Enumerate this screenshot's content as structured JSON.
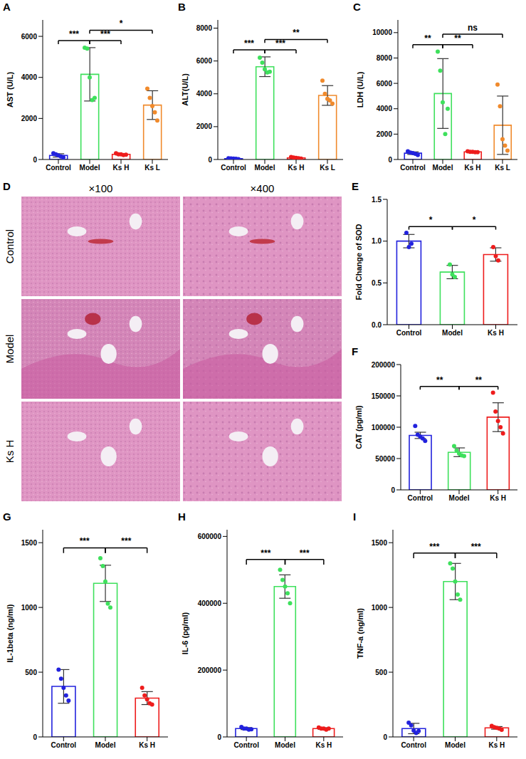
{
  "chart_data": [
    {
      "panel": "A",
      "type": "bar",
      "categories": [
        "Control",
        "Model",
        "Ks H",
        "Ks L"
      ],
      "colors": [
        "#2222dd",
        "#3ee05c",
        "#ee1c1c",
        "#f08a2c"
      ],
      "values": [
        200,
        4150,
        250,
        2650
      ],
      "error": [
        80,
        1300,
        30,
        700
      ],
      "points": [
        [
          300,
          250,
          200,
          150,
          100
        ],
        [
          5450,
          5400,
          4000,
          2900,
          3000
        ],
        [
          300,
          250,
          250,
          220,
          230
        ],
        [
          3450,
          3000,
          2600,
          2300,
          1900
        ]
      ],
      "y_label": "AST (U/L)",
      "ylim": [
        0,
        6800
      ],
      "yticks": [
        0,
        2000,
        4000,
        6000
      ],
      "comparisons": [
        {
          "groups": [
            "Control",
            "Model"
          ],
          "label": "***"
        },
        {
          "groups": [
            "Model",
            "Ks H"
          ],
          "label": "***"
        },
        {
          "groups": [
            "Model",
            "Ks L"
          ],
          "label": "*"
        }
      ]
    },
    {
      "panel": "B",
      "type": "bar",
      "categories": [
        "Control",
        "Model",
        "Ks H",
        "Ks L"
      ],
      "colors": [
        "#2222dd",
        "#3ee05c",
        "#ee1c1c",
        "#f08a2c"
      ],
      "values": [
        50,
        5650,
        100,
        3900
      ],
      "error": [
        20,
        600,
        40,
        600
      ],
      "points": [
        [
          80,
          60,
          50,
          40,
          20
        ],
        [
          6200,
          5900,
          5500,
          5300,
          5350
        ],
        [
          150,
          120,
          100,
          80,
          50
        ],
        [
          4800,
          4000,
          3700,
          3600,
          3400
        ]
      ],
      "y_label": "ALT(U/L)",
      "ylim": [
        0,
        8500
      ],
      "yticks": [
        0,
        2000,
        4000,
        6000,
        8000
      ],
      "comparisons": [
        {
          "groups": [
            "Control",
            "Model"
          ],
          "label": "***"
        },
        {
          "groups": [
            "Model",
            "Ks H"
          ],
          "label": "***"
        },
        {
          "groups": [
            "Model",
            "Ks L"
          ],
          "label": "**"
        }
      ]
    },
    {
      "panel": "C",
      "type": "bar",
      "categories": [
        "Control",
        "Model",
        "Ks H",
        "Ks L"
      ],
      "colors": [
        "#2222dd",
        "#3ee05c",
        "#ee1c1c",
        "#f08a2c"
      ],
      "values": [
        500,
        5200,
        600,
        2700
      ],
      "error": [
        100,
        2750,
        40,
        2300
      ],
      "points": [
        [
          650,
          550,
          500,
          450,
          350
        ],
        [
          8500,
          7000,
          4500,
          2000,
          4000
        ],
        [
          650,
          600,
          600,
          580,
          570
        ],
        [
          5900,
          4200,
          1600,
          1100,
          700
        ]
      ],
      "y_label": "LDH (U/L)",
      "ylim": [
        0,
        11000
      ],
      "yticks": [
        0,
        2000,
        4000,
        6000,
        8000,
        10000
      ],
      "comparisons": [
        {
          "groups": [
            "Control",
            "Model"
          ],
          "label": "**"
        },
        {
          "groups": [
            "Model",
            "Ks H"
          ],
          "label": "**"
        },
        {
          "groups": [
            "Model",
            "Ks L"
          ],
          "label": "ns"
        }
      ]
    },
    {
      "panel": "D",
      "type": "image_grid",
      "columns": [
        "×100",
        "×400"
      ],
      "rows": [
        "Control",
        "Model",
        "Ks H"
      ]
    },
    {
      "panel": "E",
      "type": "bar",
      "categories": [
        "Control",
        "Model",
        "Ks H"
      ],
      "colors": [
        "#2222dd",
        "#3ee05c",
        "#ee1c1c"
      ],
      "values": [
        1.0,
        0.63,
        0.84
      ],
      "error": [
        0.08,
        0.08,
        0.08
      ],
      "points": [
        [
          1.1,
          0.93,
          0.97
        ],
        [
          0.72,
          0.6,
          0.57
        ],
        [
          0.93,
          0.82,
          0.77
        ]
      ],
      "y_label": "Fold Change of SOD",
      "ylim": [
        0,
        1.5
      ],
      "yticks": [
        {
          "value": 0,
          "label": "0.0"
        },
        0.5,
        {
          "value": 1,
          "label": "1.0"
        },
        1.5
      ],
      "comparisons": [
        {
          "groups": [
            "Control",
            "Model"
          ],
          "label": "*"
        },
        {
          "groups": [
            "Model",
            "Ks H"
          ],
          "label": "*"
        }
      ]
    },
    {
      "panel": "F",
      "type": "bar",
      "categories": [
        "Control",
        "Model",
        "Ks H"
      ],
      "colors": [
        "#2222dd",
        "#3ee05c",
        "#ee1c1c"
      ],
      "values": [
        87000,
        60000,
        116000
      ],
      "error": [
        5000,
        7000,
        23000
      ],
      "points": [
        [
          102000,
          88000,
          85000,
          82000,
          78000
        ],
        [
          70000,
          63000,
          58000,
          55000,
          54000
        ],
        [
          155000,
          125000,
          110000,
          100000,
          90000
        ]
      ],
      "y_label": "CAT (pg/ml)",
      "ylim": [
        0,
        200000
      ],
      "yticks": [
        0,
        50000,
        100000,
        150000,
        200000
      ],
      "comparisons": [
        {
          "groups": [
            "Control",
            "Model"
          ],
          "label": "**"
        },
        {
          "groups": [
            "Model",
            "Ks H"
          ],
          "label": "**"
        }
      ]
    },
    {
      "panel": "G",
      "type": "bar",
      "categories": [
        "Control",
        "Model",
        "Ks H"
      ],
      "colors": [
        "#2222dd",
        "#3ee05c",
        "#ee1c1c"
      ],
      "values": [
        390,
        1186,
        300
      ],
      "error": [
        130,
        140,
        50
      ],
      "points": [
        [
          520,
          450,
          380,
          320,
          280
        ],
        [
          1380,
          1320,
          1200,
          1030,
          1000
        ],
        [
          380,
          320,
          290,
          260,
          250
        ]
      ],
      "y_label": "IL-1beta (ng/ml)",
      "ylim": [
        0,
        1600
      ],
      "yticks": [
        0,
        500,
        1000,
        1500
      ],
      "comparisons": [
        {
          "groups": [
            "Control",
            "Model"
          ],
          "label": "***"
        },
        {
          "groups": [
            "Model",
            "Ks H"
          ],
          "label": "***"
        }
      ]
    },
    {
      "panel": "H",
      "type": "bar",
      "categories": [
        "Control",
        "Model",
        "Ks H"
      ],
      "colors": [
        "#2222dd",
        "#3ee05c",
        "#ee1c1c"
      ],
      "values": [
        25000,
        450000,
        25000
      ],
      "error": [
        3000,
        35000,
        2500
      ],
      "points": [
        [
          30000,
          25000,
          25000,
          22000,
          23000
        ],
        [
          500000,
          470000,
          450000,
          430000,
          400000
        ],
        [
          28000,
          25000,
          25000,
          22000,
          25000
        ]
      ],
      "y_label": "IL-6 (pg/ml)",
      "ylim": [
        0,
        620000
      ],
      "yticks": [
        0,
        200000,
        400000,
        600000
      ],
      "comparisons": [
        {
          "groups": [
            "Control",
            "Model"
          ],
          "label": "***"
        },
        {
          "groups": [
            "Model",
            "Ks H"
          ],
          "label": "***"
        }
      ]
    },
    {
      "panel": "I",
      "type": "bar",
      "categories": [
        "Control",
        "Model",
        "Ks H"
      ],
      "colors": [
        "#2222dd",
        "#3ee05c",
        "#ee1c1c"
      ],
      "values": [
        65,
        1200,
        70
      ],
      "error": [
        40,
        140,
        10
      ],
      "points": [
        [
          110,
          90,
          50,
          30,
          45
        ],
        [
          1340,
          1300,
          1200,
          1100,
          1060
        ],
        [
          85,
          75,
          70,
          65,
          55
        ]
      ],
      "y_label": "TNF-a (ng/ml)",
      "ylim": [
        0,
        1600
      ],
      "yticks": [
        0,
        500,
        1000,
        1500
      ],
      "comparisons": [
        {
          "groups": [
            "Control",
            "Model"
          ],
          "label": "***"
        },
        {
          "groups": [
            "Model",
            "Ks H"
          ],
          "label": "***"
        }
      ]
    }
  ]
}
